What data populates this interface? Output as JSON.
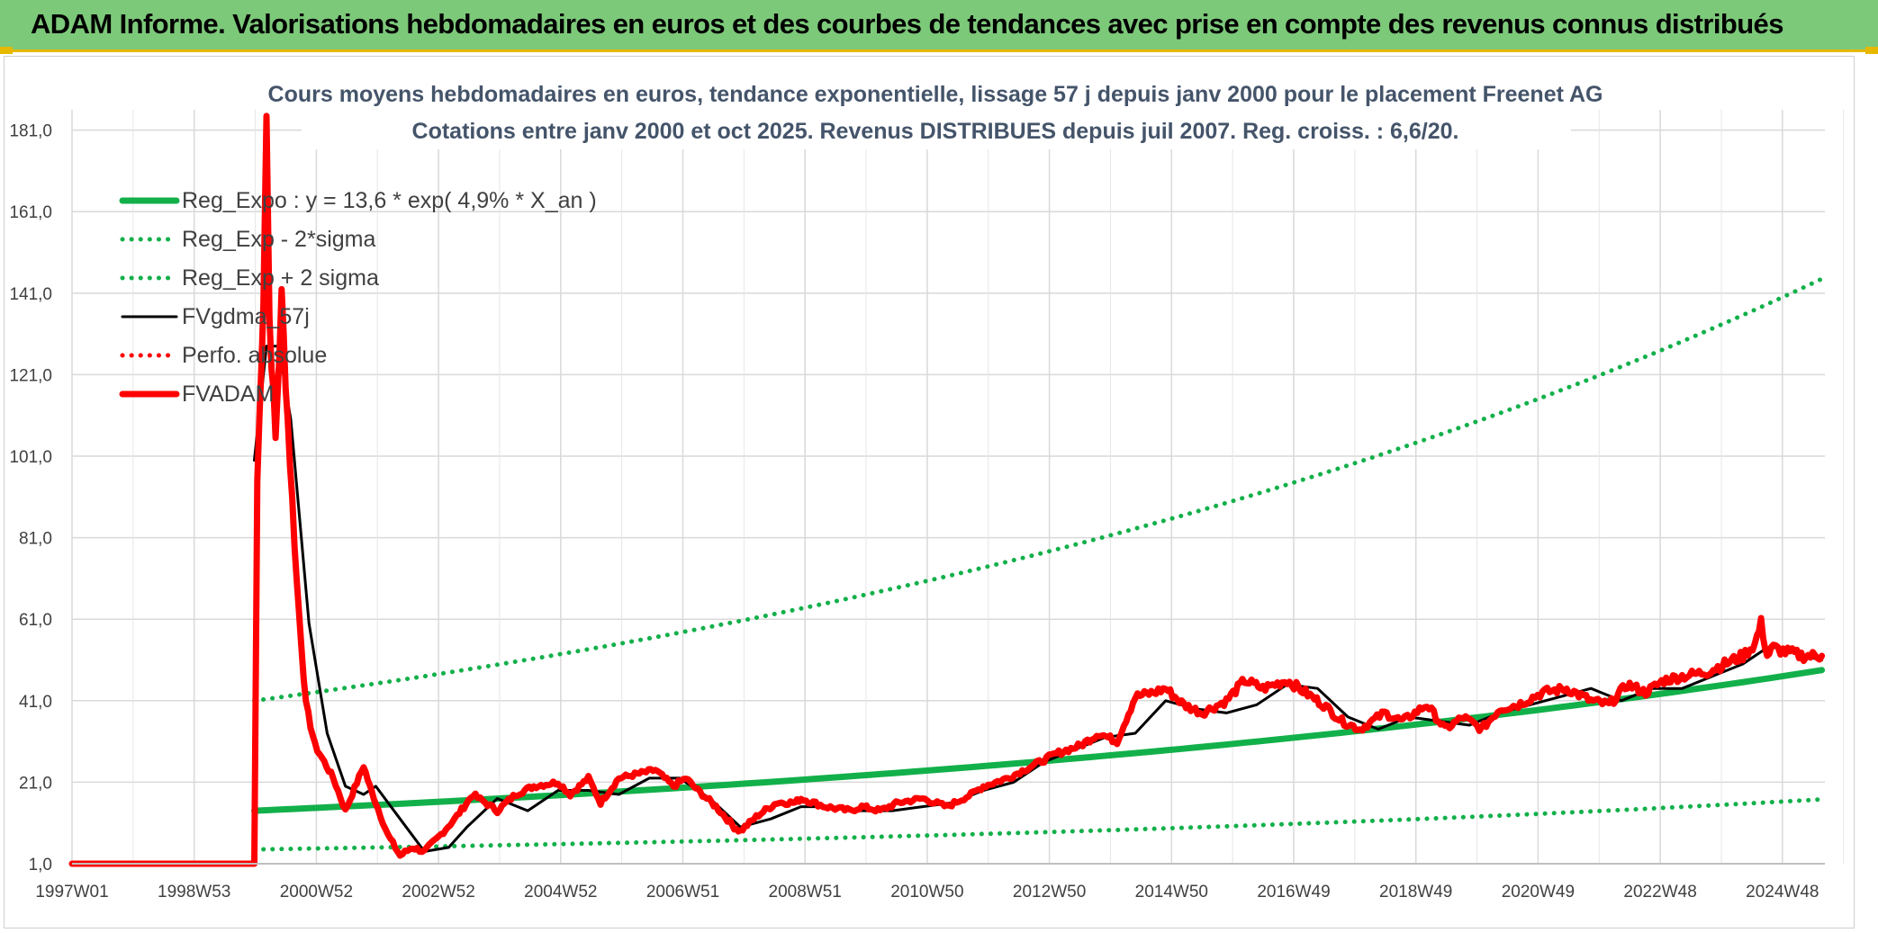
{
  "header": {
    "title": "ADAM Informe. Valorisations hebdomadaires en euros et des courbes de tendances avec prise en compte des revenus connus distribués"
  },
  "chart_data": {
    "type": "line",
    "title": "Cours moyens hebdomadaires en euros, tendance exponentielle, lissage 57 j depuis janv 2000 pour le placement Freenet AG",
    "subtitle": "Cotations entre janv 2000 et oct 2025. Revenus DISTRIBUES depuis juil 2007. Reg. croiss. : 6,6/20.",
    "x_ticks": [
      "1997W01",
      "1998W53",
      "2000W52",
      "2002W52",
      "2004W52",
      "2006W51",
      "2008W51",
      "2010W50",
      "2012W50",
      "2014W50",
      "2016W49",
      "2018W49",
      "2020W49",
      "2022W48",
      "2024W48"
    ],
    "y_ticks": [
      "1,0",
      "21,0",
      "41,0",
      "61,0",
      "81,0",
      "101,0",
      "121,0",
      "141,0",
      "161,0",
      "181,0"
    ],
    "ylim": [
      1,
      186
    ],
    "xlim": [
      1997.0,
      2025.85
    ],
    "grid": true,
    "legend_position": "top-left",
    "colors": {
      "green": "#12b04a",
      "black": "#000000",
      "red": "#ff0000"
    },
    "series": [
      {
        "name": "Reg_Expo : y = 13,6 * exp( 4,9% *  X_an )",
        "style": "solid-thick",
        "color": "#12b04a",
        "x": [
          2000.0,
          2025.8
        ],
        "y": [
          14.0,
          48.5
        ],
        "curve": "exponential"
      },
      {
        "name": "Reg_Exp - 2*sigma",
        "style": "dotted",
        "color": "#12b04a",
        "x": [
          2000.0,
          2025.8
        ],
        "y": [
          4.5,
          16.8
        ],
        "curve": "exponential"
      },
      {
        "name": "Reg_Exp + 2 sigma",
        "style": "dotted",
        "color": "#12b04a",
        "x": [
          2000.0,
          2025.8
        ],
        "y": [
          41.0,
          144.5
        ],
        "curve": "exponential"
      },
      {
        "name": "FVgdma_57j",
        "style": "solid",
        "color": "#000000",
        "x": [
          2000.0,
          2000.2,
          2000.4,
          2000.6,
          2000.9,
          2001.2,
          2001.5,
          2001.8,
          2002.0,
          2002.4,
          2002.8,
          2003.2,
          2003.5,
          2004.0,
          2004.5,
          2005.0,
          2005.5,
          2006.0,
          2006.5,
          2007.0,
          2007.5,
          2008.0,
          2008.5,
          2009.0,
          2009.5,
          2010.0,
          2010.5,
          2011.0,
          2011.5,
          2012.0,
          2012.5,
          2013.0,
          2013.5,
          2014.0,
          2014.5,
          2015.0,
          2015.5,
          2016.0,
          2016.5,
          2017.0,
          2017.5,
          2018.0,
          2018.5,
          2019.0,
          2019.5,
          2020.0,
          2020.5,
          2021.0,
          2021.5,
          2022.0,
          2022.5,
          2023.0,
          2023.5,
          2024.0,
          2024.5,
          2024.9,
          2025.2,
          2025.5,
          2025.8
        ],
        "y": [
          100,
          128,
          128,
          110,
          60,
          33,
          20,
          18,
          20,
          12,
          4,
          5,
          10,
          17,
          14,
          19,
          19,
          18,
          22,
          22,
          17,
          10,
          12,
          15,
          15,
          14,
          14,
          15,
          16,
          19,
          21,
          26,
          29,
          32,
          33,
          41,
          39,
          38,
          40,
          45,
          44,
          37,
          34,
          37,
          36,
          35,
          38,
          40,
          42,
          44,
          41,
          44,
          44,
          47,
          50,
          54,
          54,
          52,
          51
        ]
      },
      {
        "name": "Perfo. absolue",
        "style": "dotted",
        "color": "#ff0000",
        "x": [],
        "y": []
      },
      {
        "name": "FVADAM",
        "style": "solid-thick",
        "color": "#ff0000",
        "x": [
          1997.0,
          2000.0,
          2000.05,
          2000.15,
          2000.2,
          2000.25,
          2000.35,
          2000.45,
          2000.55,
          2000.7,
          2000.85,
          2001.0,
          2001.3,
          2001.5,
          2001.8,
          2001.9,
          2002.0,
          2002.2,
          2002.4,
          2002.6,
          2002.8,
          2003.0,
          2003.3,
          2003.6,
          2004.0,
          2004.3,
          2004.6,
          2005.0,
          2005.2,
          2005.5,
          2005.7,
          2006.0,
          2006.3,
          2006.6,
          2006.9,
          2007.1,
          2007.3,
          2007.6,
          2007.9,
          2008.0,
          2008.3,
          2008.6,
          2008.9,
          2009.0,
          2009.4,
          2009.8,
          2010.0,
          2010.3,
          2010.6,
          2011.0,
          2011.4,
          2011.8,
          2012.0,
          2012.4,
          2012.8,
          2013.2,
          2013.6,
          2013.9,
          2014.2,
          2014.5,
          2014.8,
          2015.0,
          2015.3,
          2015.6,
          2016.0,
          2016.3,
          2016.6,
          2017.0,
          2017.3,
          2017.6,
          2017.9,
          2018.2,
          2018.6,
          2018.9,
          2019.3,
          2019.6,
          2019.9,
          2020.2,
          2020.5,
          2020.8,
          2021.2,
          2021.6,
          2022.0,
          2022.3,
          2022.6,
          2022.9,
          2023.2,
          2023.5,
          2023.9,
          2024.2,
          2024.5,
          2024.7,
          2024.8,
          2024.9,
          2025.0,
          2025.2,
          2025.5,
          2025.8
        ],
        "y": [
          1,
          1,
          95,
          140,
          185,
          135,
          105,
          140,
          110,
          70,
          40,
          30,
          22,
          14,
          25,
          20,
          16,
          8,
          3,
          5,
          4,
          7,
          12,
          18,
          14,
          18,
          20,
          21,
          18,
          22,
          16,
          22,
          23,
          24,
          20,
          22,
          19,
          15,
          10,
          9,
          13,
          16,
          16,
          17,
          15,
          14,
          15,
          14,
          16,
          17,
          15,
          18,
          20,
          22,
          25,
          28,
          30,
          33,
          31,
          42,
          43,
          44,
          40,
          38,
          41,
          46,
          44,
          46,
          43,
          40,
          36,
          34,
          38,
          36,
          40,
          34,
          37,
          34,
          39,
          40,
          43,
          44,
          41,
          40,
          45,
          43,
          46,
          47,
          48,
          50,
          52,
          55,
          60,
          52,
          54,
          53,
          52,
          52
        ]
      }
    ]
  }
}
